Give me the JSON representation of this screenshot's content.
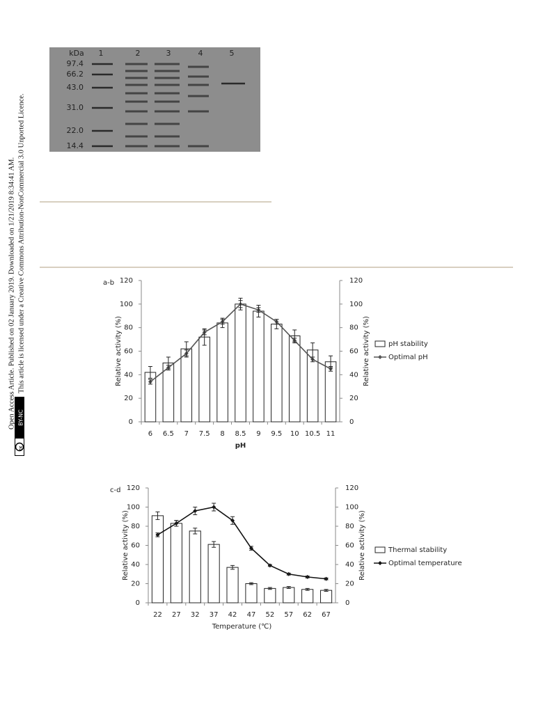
{
  "side_notice": {
    "line1": "Open Access Article. Published on 02 January 2019. Downloaded on 1/21/2019 8:34:41 AM.",
    "line2": "This article is licensed under a Creative Commons Attribution-NonCommercial 3.0 Unported Licence.",
    "badge_cc": "cc",
    "badge_license": "BY-NC"
  },
  "gel": {
    "unit": "kDa",
    "lanes": [
      "1",
      "2",
      "3",
      "4",
      "5"
    ],
    "markers": [
      "97.4",
      "66.2",
      "43.0",
      "31.0",
      "22.0",
      "14.4"
    ]
  },
  "chart_data": [
    {
      "type": "bar_line",
      "panel_label": "a-b",
      "x_label": "pH",
      "y_label": "Relative activity (%)",
      "y2_label": "Relative activity (%)",
      "categories": [
        "6",
        "6.5",
        "7",
        "7.5",
        "8",
        "8.5",
        "9",
        "9.5",
        "10",
        "10.5",
        "11"
      ],
      "ylim": [
        0,
        120
      ],
      "yticks": [
        0,
        20,
        40,
        60,
        80,
        100,
        120
      ],
      "y2lim": [
        0,
        120
      ],
      "y2ticks": [
        0,
        20,
        40,
        60,
        80,
        100,
        120
      ],
      "series": [
        {
          "name": "pH stability",
          "mark": "bar",
          "color": "#ffffff",
          "values": [
            42,
            50,
            62,
            72,
            84,
            100,
            94,
            83,
            73,
            61,
            51
          ],
          "errors": [
            5,
            5,
            6,
            7,
            4,
            5,
            5,
            4,
            5,
            6,
            5
          ]
        },
        {
          "name": "Optimal pH",
          "mark": "line",
          "axis": "y2",
          "color": "#555555",
          "values": [
            34,
            46,
            58,
            76,
            85,
            100,
            95,
            85,
            69,
            53,
            45
          ],
          "errors": [
            2,
            2,
            3,
            2,
            2,
            3,
            2,
            2,
            2,
            2,
            2
          ]
        }
      ]
    },
    {
      "type": "bar_line",
      "panel_label": "c-d",
      "x_label": "Temperature (℃)",
      "y_label": "Relative activity (%)",
      "y2_label": "Relative activity (%)",
      "categories": [
        "22",
        "27",
        "32",
        "37",
        "42",
        "47",
        "52",
        "57",
        "62",
        "67"
      ],
      "ylim": [
        0,
        120
      ],
      "yticks": [
        0,
        20,
        40,
        60,
        80,
        100,
        120
      ],
      "y2lim": [
        0,
        120
      ],
      "y2ticks": [
        0,
        20,
        40,
        60,
        80,
        100,
        120
      ],
      "series": [
        {
          "name": "Thermal stability",
          "mark": "bar",
          "color": "#ffffff",
          "values": [
            91,
            83,
            75,
            61,
            37,
            20,
            15,
            16,
            14,
            13
          ],
          "errors": [
            4,
            3,
            3,
            3,
            2,
            1,
            1,
            1,
            1,
            1
          ]
        },
        {
          "name": "Optimal temperature",
          "mark": "line",
          "axis": "y2",
          "color": "#111111",
          "values": [
            71,
            83,
            96,
            100,
            86,
            57,
            39,
            30,
            27,
            25
          ],
          "errors": [
            2,
            3,
            4,
            4,
            4,
            2,
            1,
            1,
            1,
            1
          ]
        }
      ]
    }
  ]
}
